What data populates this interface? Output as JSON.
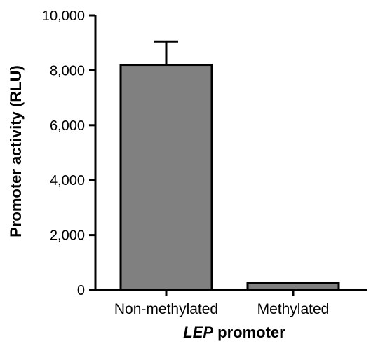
{
  "chart_data": {
    "type": "bar",
    "categories": [
      "Non-methylated",
      "Methylated"
    ],
    "values": [
      8200,
      250
    ],
    "error_upper": [
      850,
      0
    ],
    "ylabel": "Promoter activity (RLU)",
    "xlabel_italic": "LEP",
    "xlabel_rest": " promoter",
    "ylim": [
      0,
      10000
    ],
    "yticks": [
      0,
      2000,
      4000,
      6000,
      8000,
      10000
    ],
    "ytick_labels": [
      "0",
      "2,000",
      "4,000",
      "6,000",
      "8,000",
      "10,000"
    ],
    "bar_color": "#808080",
    "grid": false
  }
}
